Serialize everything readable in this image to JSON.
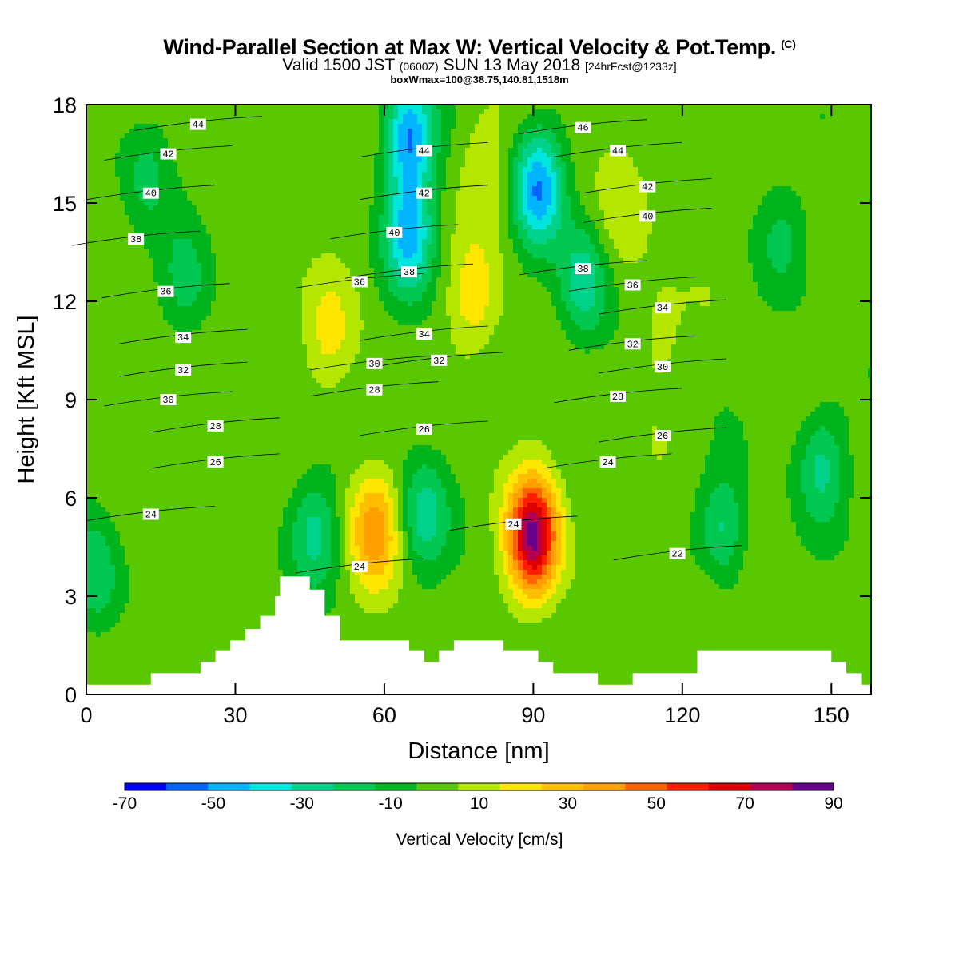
{
  "header": {
    "title": "Wind-Parallel Section at Max W: Vertical Velocity & Pot.Temp.",
    "copyright": "(C)",
    "valid_prefix": "Valid 1500 JST",
    "valid_utc": "(0600Z)",
    "valid_date": "SUN 13 May 2018",
    "forecast": "[24hrFcst@1233z]",
    "box_info": "boxWmax=100@38.75,140.81,1518m"
  },
  "chart_data": {
    "type": "heatmap",
    "title": "Wind-Parallel Section at Max W: Vertical Velocity & Pot.Temp.",
    "xlabel": "Distance [nm]",
    "ylabel": "Height [Kft MSL]",
    "xlim": [
      0,
      158
    ],
    "ylim": [
      0,
      18
    ],
    "xticks": [
      0,
      30,
      60,
      90,
      120,
      150
    ],
    "yticks": [
      0,
      3,
      6,
      9,
      12,
      15,
      18
    ],
    "colorbar": {
      "label": "Vertical Velocity [cm/s]",
      "tick_labels": [
        "-70",
        "-50",
        "-30",
        "-10",
        "10",
        "30",
        "50",
        "70",
        "90"
      ],
      "levels": [
        -70,
        -60,
        -50,
        -40,
        -30,
        -20,
        -10,
        0,
        10,
        20,
        30,
        40,
        50,
        60,
        70,
        80,
        90
      ],
      "colors": [
        "#0000ff",
        "#0064ff",
        "#00b4ff",
        "#00e6dc",
        "#00d28c",
        "#00c850",
        "#00b41e",
        "#5ac800",
        "#b4e600",
        "#ffe600",
        "#ffbe00",
        "#ffa000",
        "#ff6400",
        "#ff1e00",
        "#dc0000",
        "#b40050",
        "#64008c"
      ]
    },
    "background_value": 5,
    "velocity_features": [
      {
        "x": 49,
        "y": 11.0,
        "value": 22
      },
      {
        "x": 58,
        "y": 5.0,
        "value": 45
      },
      {
        "x": 65,
        "y": 14.0,
        "value": -42
      },
      {
        "x": 65,
        "y": 17.0,
        "value": -50
      },
      {
        "x": 78,
        "y": 12.0,
        "value": 25
      },
      {
        "x": 80,
        "y": 16.0,
        "value": 20
      },
      {
        "x": 90,
        "y": 4.8,
        "value": 92
      },
      {
        "x": 91,
        "y": 15.5,
        "value": -48
      },
      {
        "x": 100,
        "y": 12.5,
        "value": -28
      },
      {
        "x": 108,
        "y": 14.5,
        "value": 16
      },
      {
        "x": 115,
        "y": 11.0,
        "value": 15
      },
      {
        "x": 20,
        "y": 12.5,
        "value": -16
      },
      {
        "x": 12,
        "y": 16.0,
        "value": -12
      },
      {
        "x": 2,
        "y": 3.5,
        "value": -18
      },
      {
        "x": 148,
        "y": 7.0,
        "value": -22
      },
      {
        "x": 128,
        "y": 5.0,
        "value": -24
      },
      {
        "x": 68,
        "y": 5.5,
        "value": -24
      },
      {
        "x": 46,
        "y": 5.0,
        "value": -22
      },
      {
        "x": 140,
        "y": 14.0,
        "value": -10
      },
      {
        "x": 125,
        "y": 3.0,
        "value": 15
      }
    ],
    "terrain": [
      [
        0,
        0.3
      ],
      [
        13,
        0.3
      ],
      [
        13,
        0.65
      ],
      [
        23,
        0.65
      ],
      [
        23,
        1.0
      ],
      [
        26,
        1.0
      ],
      [
        26,
        1.35
      ],
      [
        29,
        1.35
      ],
      [
        29,
        1.65
      ],
      [
        32,
        1.65
      ],
      [
        32,
        2.0
      ],
      [
        35,
        2.0
      ],
      [
        35,
        2.4
      ],
      [
        38,
        2.4
      ],
      [
        38,
        3.0
      ],
      [
        39,
        3.0
      ],
      [
        39,
        3.6
      ],
      [
        45,
        3.6
      ],
      [
        45,
        3.2
      ],
      [
        48,
        3.2
      ],
      [
        48,
        2.4
      ],
      [
        51,
        2.4
      ],
      [
        51,
        1.65
      ],
      [
        65,
        1.65
      ],
      [
        65,
        1.35
      ],
      [
        68,
        1.35
      ],
      [
        68,
        1.0
      ],
      [
        71,
        1.0
      ],
      [
        71,
        1.35
      ],
      [
        74,
        1.35
      ],
      [
        74,
        1.65
      ],
      [
        84,
        1.65
      ],
      [
        84,
        1.35
      ],
      [
        91,
        1.35
      ],
      [
        91,
        1.0
      ],
      [
        94,
        1.0
      ],
      [
        94,
        0.65
      ],
      [
        103,
        0.65
      ],
      [
        103,
        0.3
      ],
      [
        110,
        0.3
      ],
      [
        110,
        0.65
      ],
      [
        123,
        0.65
      ],
      [
        123,
        1.35
      ],
      [
        150,
        1.35
      ],
      [
        150,
        1.0
      ],
      [
        153,
        1.0
      ],
      [
        153,
        0.65
      ],
      [
        156,
        0.65
      ],
      [
        156,
        0.3
      ],
      [
        158,
        0.3
      ]
    ],
    "theta_contours": [
      {
        "label": "44",
        "lx": 22.5,
        "ly": 17.4
      },
      {
        "label": "42",
        "lx": 16.5,
        "ly": 16.5
      },
      {
        "label": "40",
        "lx": 13,
        "ly": 15.3
      },
      {
        "label": "38",
        "lx": 10,
        "ly": 13.9
      },
      {
        "label": "36",
        "lx": 16,
        "ly": 12.3
      },
      {
        "label": "34",
        "lx": 19.5,
        "ly": 10.9
      },
      {
        "label": "32",
        "lx": 19.5,
        "ly": 9.9
      },
      {
        "label": "30",
        "lx": 16.5,
        "ly": 9.0
      },
      {
        "label": "28",
        "lx": 26,
        "ly": 8.2
      },
      {
        "label": "26",
        "lx": 26,
        "ly": 7.1
      },
      {
        "label": "24",
        "lx": 13,
        "ly": 5.5
      },
      {
        "label": "44",
        "lx": 68,
        "ly": 16.6
      },
      {
        "label": "42",
        "lx": 68,
        "ly": 15.3
      },
      {
        "label": "40",
        "lx": 62,
        "ly": 14.1
      },
      {
        "label": "38",
        "lx": 65,
        "ly": 12.9
      },
      {
        "label": "36",
        "lx": 55,
        "ly": 12.6
      },
      {
        "label": "34",
        "lx": 68,
        "ly": 11.0
      },
      {
        "label": "32",
        "lx": 71,
        "ly": 10.2
      },
      {
        "label": "30",
        "lx": 58,
        "ly": 10.1
      },
      {
        "label": "28",
        "lx": 58,
        "ly": 9.3
      },
      {
        "label": "26",
        "lx": 68,
        "ly": 8.1
      },
      {
        "label": "24",
        "lx": 55,
        "ly": 3.9
      },
      {
        "label": "24",
        "lx": 86,
        "ly": 5.2
      },
      {
        "label": "46",
        "lx": 100,
        "ly": 17.3
      },
      {
        "label": "44",
        "lx": 107,
        "ly": 16.6
      },
      {
        "label": "42",
        "lx": 113,
        "ly": 15.5
      },
      {
        "label": "40",
        "lx": 113,
        "ly": 14.6
      },
      {
        "label": "38",
        "lx": 100,
        "ly": 13.0
      },
      {
        "label": "36",
        "lx": 110,
        "ly": 12.5
      },
      {
        "label": "34",
        "lx": 116,
        "ly": 11.8
      },
      {
        "label": "32",
        "lx": 110,
        "ly": 10.7
      },
      {
        "label": "30",
        "lx": 116,
        "ly": 10.0
      },
      {
        "label": "28",
        "lx": 107,
        "ly": 9.1
      },
      {
        "label": "26",
        "lx": 116,
        "ly": 7.9
      },
      {
        "label": "24",
        "lx": 105,
        "ly": 7.1
      },
      {
        "label": "22",
        "lx": 119,
        "ly": 4.3
      }
    ],
    "grid": false,
    "legend": "colorbar-bottom"
  }
}
